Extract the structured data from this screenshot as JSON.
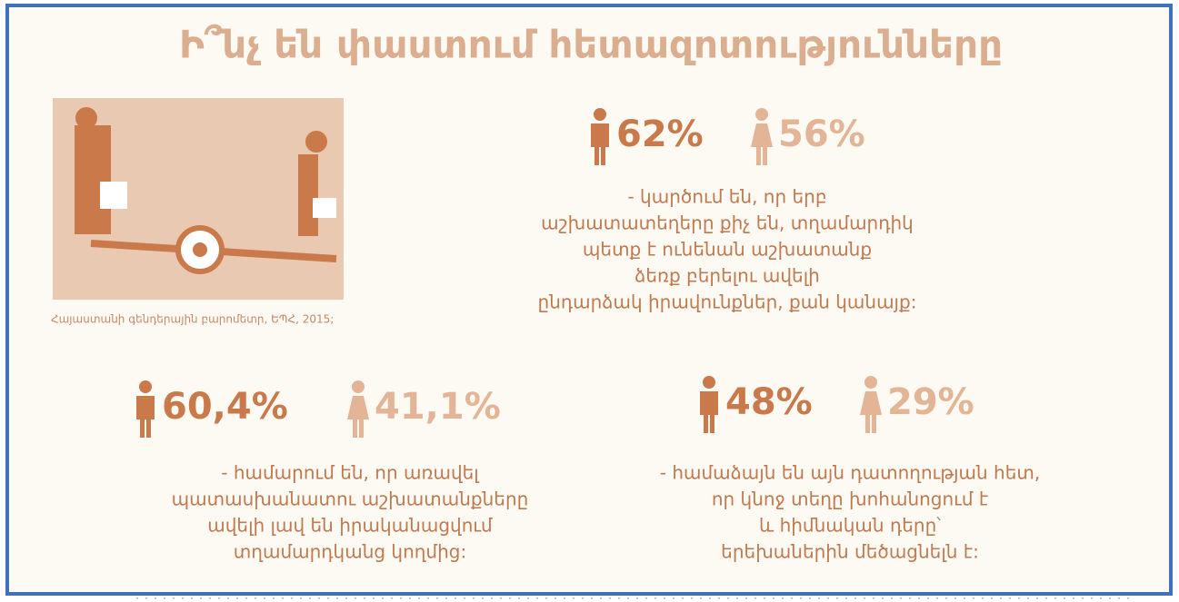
{
  "title": "Ի՞նչ են փաստում հետազոտությունները",
  "caption": "Հայաստանի գենդերային բարոմետր, ԵՊՀ, 2015;",
  "stats": [
    {
      "male": "62%",
      "female": "56%",
      "text": [
        "- կարծում են, որ երբ",
        "աշխատատեղերը քիչ են, տղամարդիկ",
        "պետք է ունենան աշխատանք",
        "ձեռք բերելու ավելի",
        "ընդարձակ իրավունքներ, քան կանայք:"
      ]
    },
    {
      "male": "60,4%",
      "female": "41,1%",
      "text": [
        "- համարում են, որ առավել",
        "պատասխանատու աշխատանքները",
        "ավելի լավ են իրականացվում",
        "տղամարդկանց կողմից:"
      ]
    },
    {
      "male": "48%",
      "female": "29%",
      "text": [
        "- համաձայն են այն դատողության հետ,",
        "որ կնոջ տեղը խոհանոցում է",
        "և հիմնական դերը՝",
        "երեխաներին մեծացնելն է:"
      ]
    }
  ]
}
